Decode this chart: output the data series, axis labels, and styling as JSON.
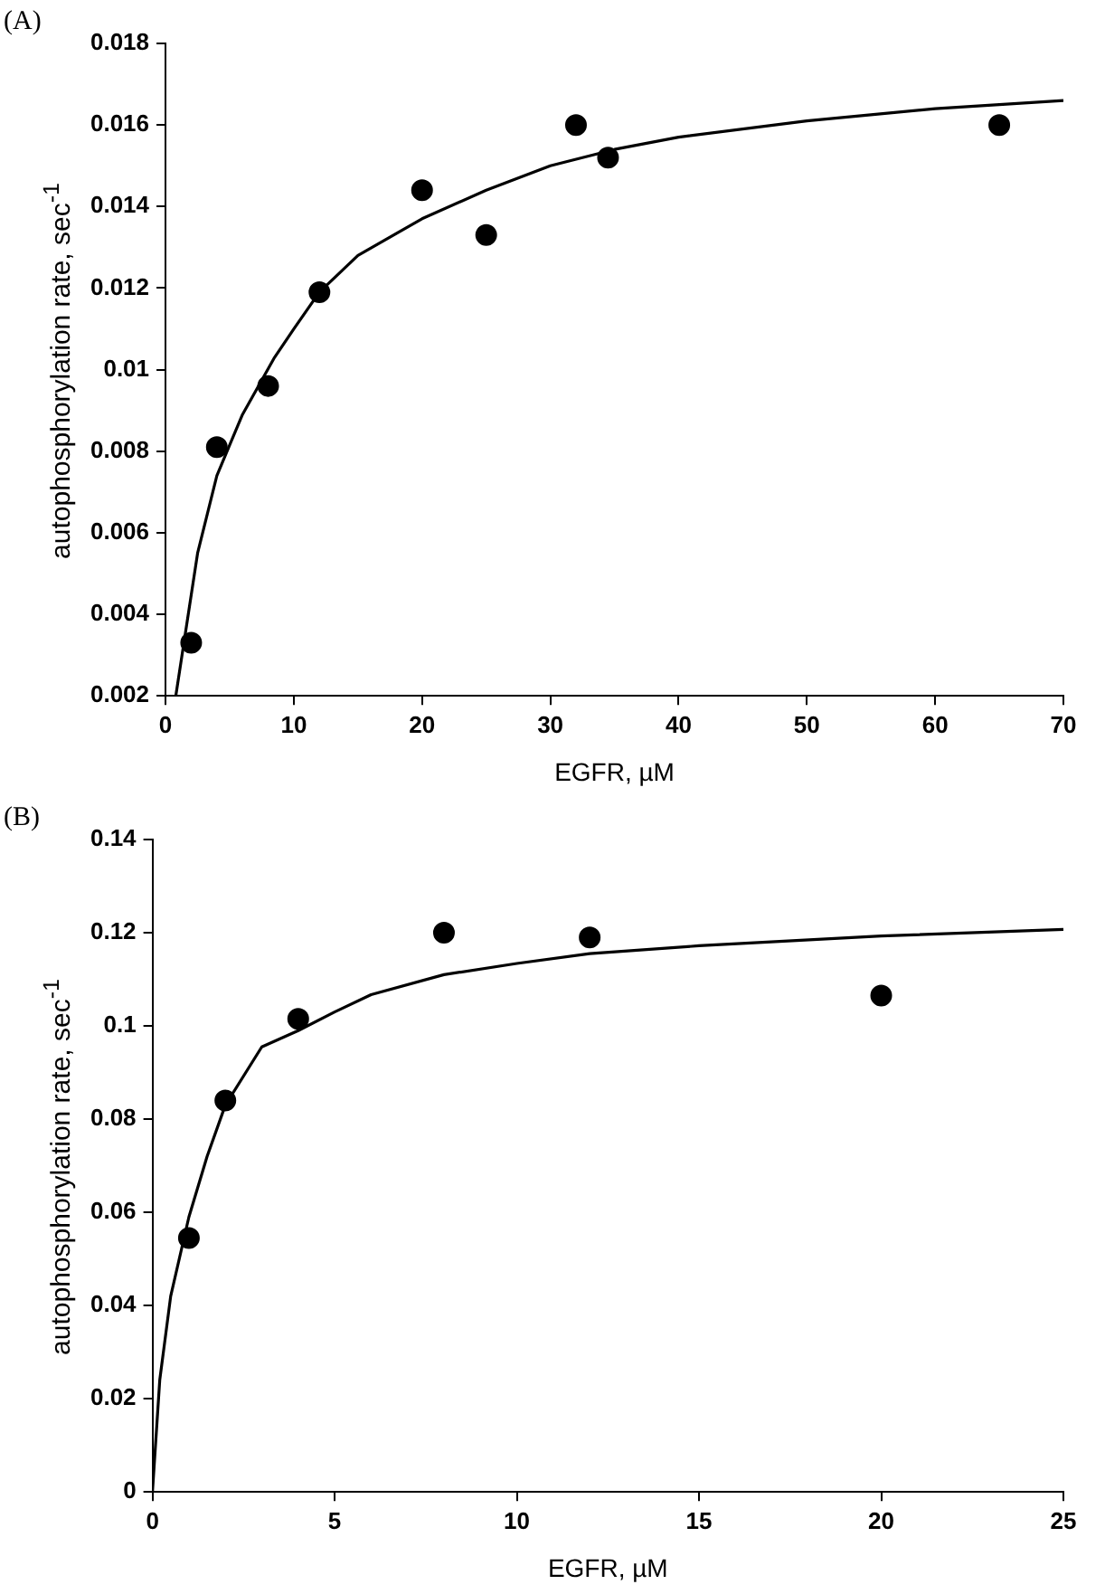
{
  "chart_data": [
    {
      "type": "scatter",
      "title": "(A)",
      "xlabel": "EGFR, µM",
      "ylabel": "autophosphorylation rate, sec$^{-1}$",
      "xlim": [
        0,
        70
      ],
      "xticks": [
        0,
        10,
        20,
        30,
        40,
        50,
        60,
        70
      ],
      "ylim": [
        0.002,
        0.018
      ],
      "yticks": [
        0.002,
        0.004,
        0.006,
        0.008,
        0.01,
        0.012,
        0.014,
        0.016,
        0.018
      ],
      "grid": false,
      "series": [
        {
          "type": "scatter",
          "marker": "circle",
          "color": "#000000",
          "x": [
            2,
            4,
            8,
            12,
            20,
            25,
            32,
            34.5,
            65
          ],
          "values": [
            0.0033,
            0.0081,
            0.0096,
            0.0119,
            0.0144,
            0.0133,
            0.016,
            0.0152,
            0.016
          ]
        },
        {
          "type": "line",
          "marker": "none",
          "color": "#000000",
          "x": [
            0.8,
            2.5,
            4,
            6,
            8.5,
            10,
            12,
            15,
            20,
            25,
            30,
            35,
            40,
            50,
            60,
            70
          ],
          "values": [
            0.002,
            0.0055,
            0.0074,
            0.0089,
            0.0103,
            0.011,
            0.0119,
            0.0128,
            0.0137,
            0.0144,
            0.015,
            0.0154,
            0.0157,
            0.0161,
            0.0164,
            0.0166
          ]
        }
      ]
    },
    {
      "type": "scatter",
      "title": "(B)",
      "xlabel": "EGFR, µM",
      "ylabel": "autophosphorylation rate, sec$^{-1}$",
      "xlim": [
        0,
        25
      ],
      "xticks": [
        0,
        5,
        10,
        15,
        20,
        25
      ],
      "ylim": [
        0,
        0.14
      ],
      "yticks": [
        0,
        0.02,
        0.04,
        0.06,
        0.08,
        0.1,
        0.12,
        0.14
      ],
      "grid": false,
      "series": [
        {
          "type": "scatter",
          "marker": "circle",
          "color": "#000000",
          "x": [
            1,
            2,
            4,
            8,
            12,
            20
          ],
          "values": [
            0.0545,
            0.084,
            0.1015,
            0.12,
            0.119,
            0.1065
          ]
        },
        {
          "type": "line",
          "marker": "none",
          "color": "#000000",
          "x": [
            0,
            0.2,
            0.5,
            1,
            1.5,
            2,
            3,
            4,
            5,
            6,
            8,
            10,
            12,
            15,
            20,
            25
          ],
          "values": [
            0,
            0.024,
            0.042,
            0.059,
            0.072,
            0.083,
            0.0955,
            0.099,
            0.103,
            0.1067,
            0.111,
            0.1134,
            0.1155,
            0.1172,
            0.1193,
            0.1207
          ]
        }
      ]
    }
  ]
}
